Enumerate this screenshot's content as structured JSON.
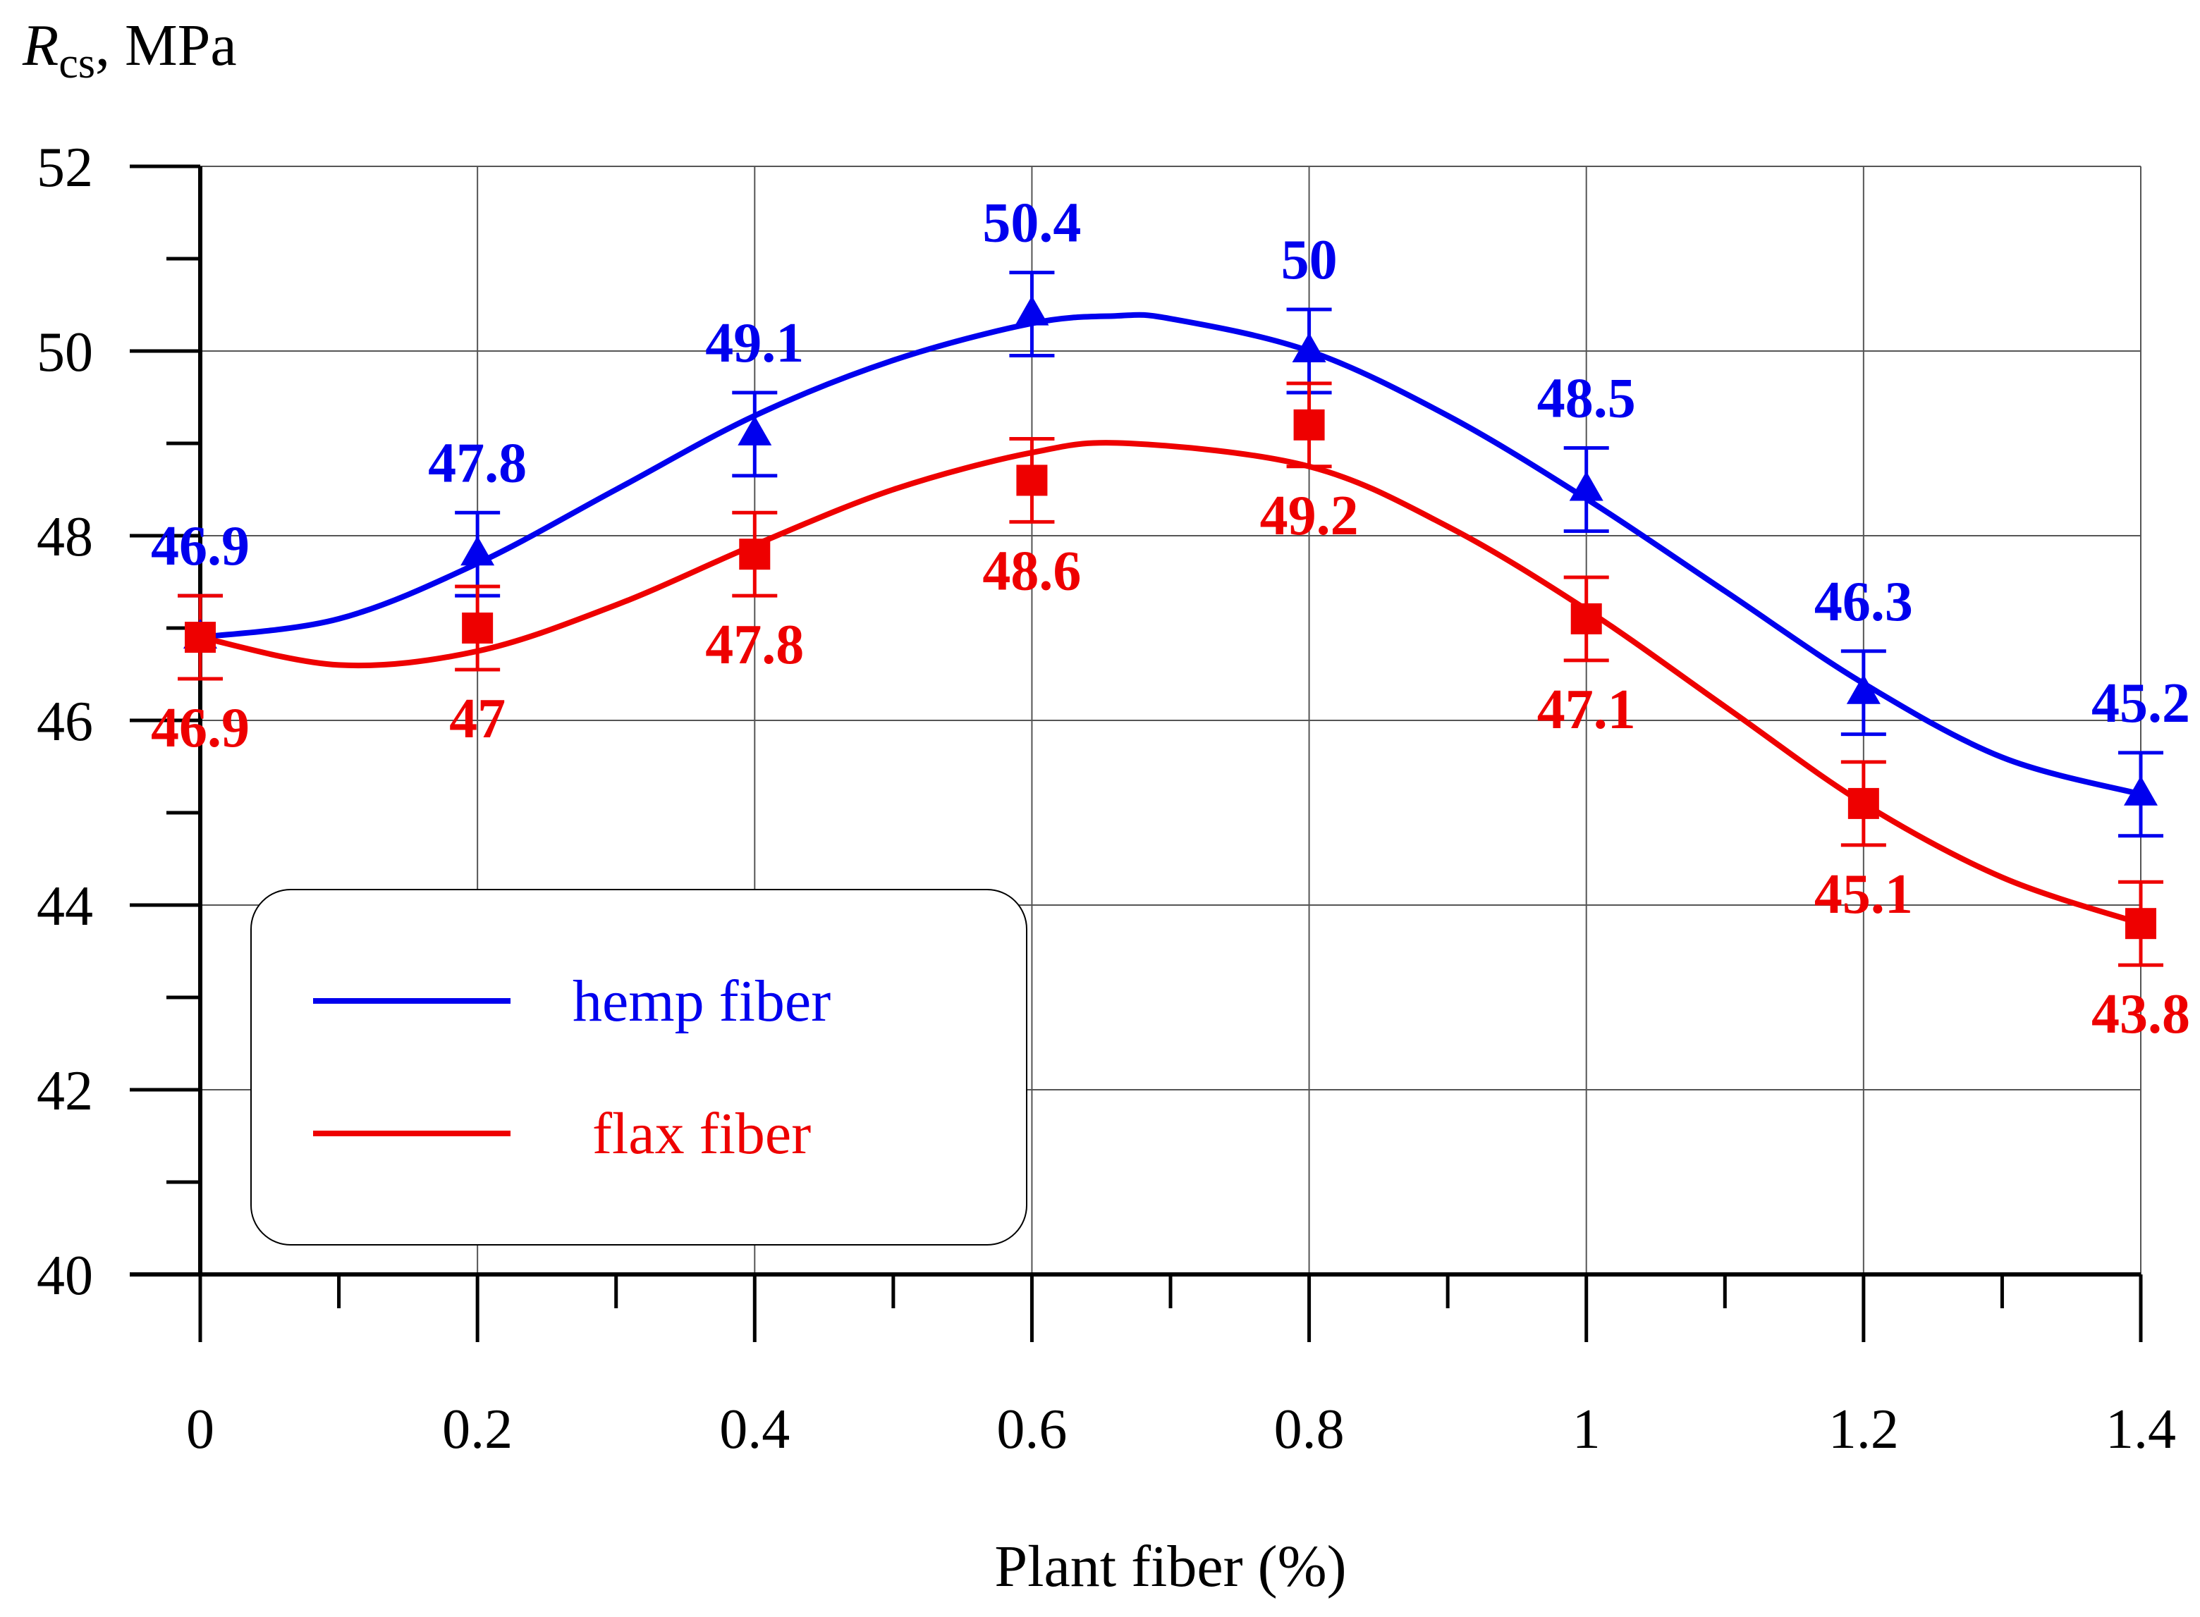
{
  "chart_data": {
    "type": "line",
    "xlabel": "Plant fiber (%)",
    "ylabel_main": "R",
    "ylabel_sub": "cs",
    "ylabel_rest": ", MPa",
    "x": [
      0,
      0.2,
      0.4,
      0.6,
      0.8,
      1,
      1.2,
      1.4
    ],
    "x_tick_labels": [
      "0",
      "0.2",
      "0.4",
      "0.6",
      "0.8",
      "1",
      "1.2",
      "1.4"
    ],
    "xlim": [
      0,
      1.4
    ],
    "ylim": [
      40,
      52
    ],
    "y_ticks": [
      40,
      42,
      44,
      46,
      48,
      50,
      52
    ],
    "y_tick_labels": [
      "40",
      "42",
      "44",
      "46",
      "48",
      "50",
      "52"
    ],
    "grid": true,
    "legend_position": "lower-left",
    "series": [
      {
        "name": "hemp fiber",
        "color": "#0000ee",
        "marker": "triangle",
        "values": [
          46.9,
          47.8,
          49.1,
          50.4,
          50,
          48.5,
          46.3,
          45.2
        ],
        "labels": [
          "46.9",
          "47.8",
          "49.1",
          "50.4",
          "50",
          "48.5",
          "46.3",
          "45.2"
        ],
        "error": 0.45,
        "label_side": "above"
      },
      {
        "name": "flax fiber",
        "color": "#ee0000",
        "marker": "square",
        "values": [
          46.9,
          47,
          47.8,
          48.6,
          49.2,
          47.1,
          45.1,
          43.8
        ],
        "labels": [
          "46.9",
          "47",
          "47.8",
          "48.6",
          "49.2",
          "47.1",
          "45.1",
          "43.8"
        ],
        "error": 0.45,
        "label_side": "below"
      }
    ],
    "fit_curves": [
      {
        "name": "hemp fiber",
        "points": [
          [
            0,
            46.9
          ],
          [
            0.1,
            47.1
          ],
          [
            0.2,
            47.7
          ],
          [
            0.3,
            48.5
          ],
          [
            0.4,
            49.3
          ],
          [
            0.5,
            49.9
          ],
          [
            0.6,
            50.3
          ],
          [
            0.66,
            50.38
          ],
          [
            0.7,
            50.35
          ],
          [
            0.8,
            50.0
          ],
          [
            0.9,
            49.3
          ],
          [
            1.0,
            48.4
          ],
          [
            1.1,
            47.4
          ],
          [
            1.2,
            46.4
          ],
          [
            1.3,
            45.6
          ],
          [
            1.4,
            45.2
          ]
        ]
      },
      {
        "name": "flax fiber",
        "points": [
          [
            0,
            46.9
          ],
          [
            0.1,
            46.6
          ],
          [
            0.2,
            46.75
          ],
          [
            0.3,
            47.25
          ],
          [
            0.4,
            47.9
          ],
          [
            0.5,
            48.5
          ],
          [
            0.6,
            48.9
          ],
          [
            0.67,
            49.0
          ],
          [
            0.8,
            48.75
          ],
          [
            0.9,
            48.1
          ],
          [
            1.0,
            47.2
          ],
          [
            1.1,
            46.15
          ],
          [
            1.2,
            45.1
          ],
          [
            1.3,
            44.3
          ],
          [
            1.4,
            43.8
          ]
        ]
      }
    ]
  }
}
